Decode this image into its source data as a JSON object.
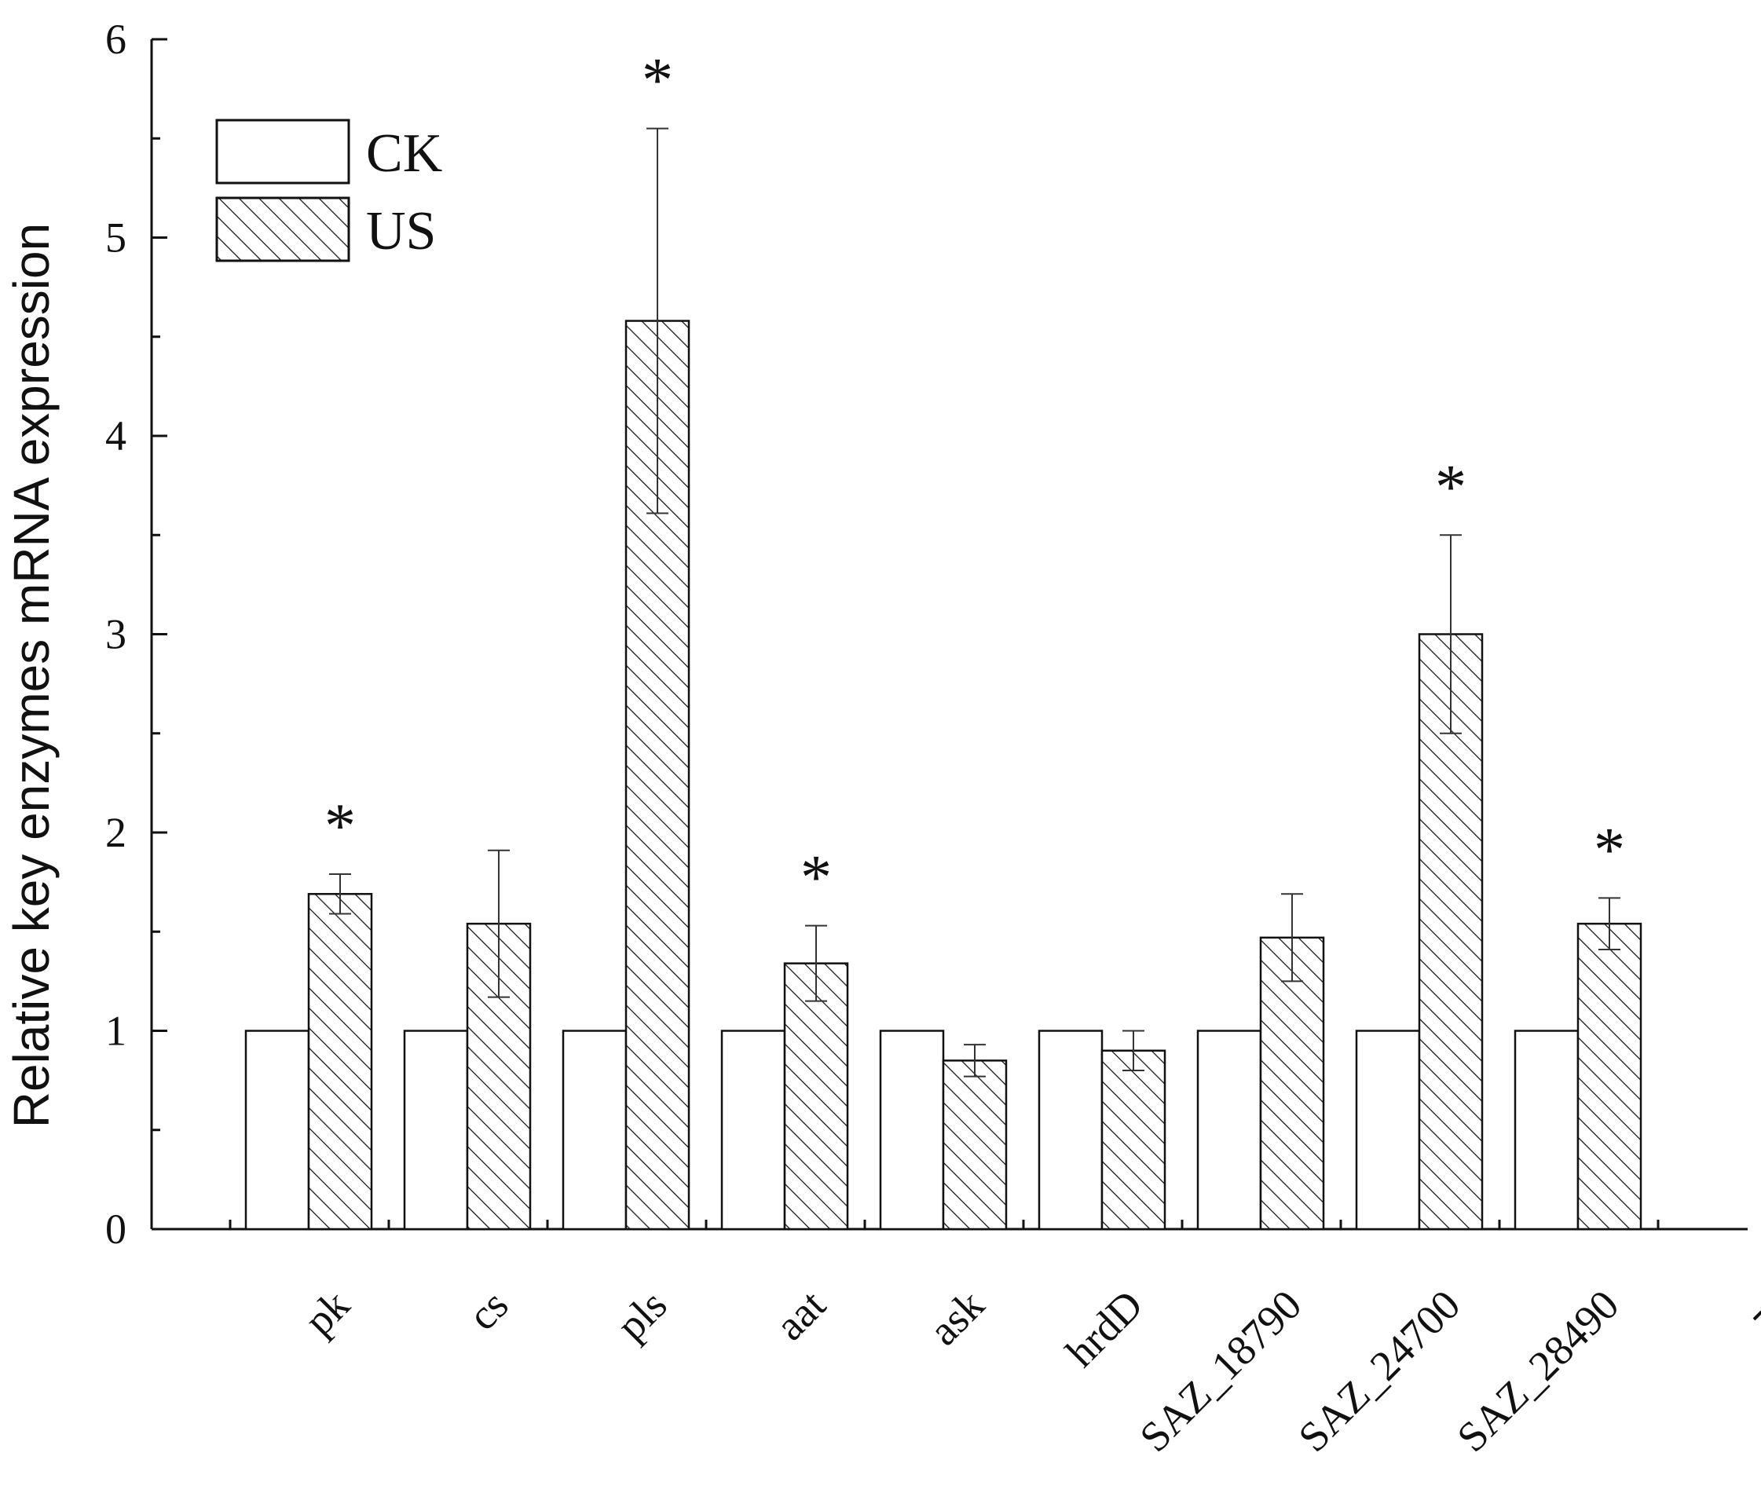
{
  "chart_data": {
    "type": "bar",
    "title": "",
    "xlabel": "",
    "ylabel": "Relative key enzymes mRNA expression",
    "ylim": [
      0,
      6
    ],
    "yticks": [
      "0",
      "1",
      "2",
      "3",
      "4",
      "5",
      "6"
    ],
    "grid": false,
    "legend_position": "top-left",
    "categories": [
      "pk",
      "cs",
      "pls",
      "aat",
      "ask",
      "hrdD",
      "SAZ_18790",
      "SAZ_24700",
      "SAZ_28490",
      "--"
    ],
    "series": [
      {
        "name": "CK",
        "fill": "white",
        "values": [
          1,
          1,
          1,
          1,
          1,
          1,
          1,
          1,
          1,
          null
        ],
        "errors": [
          0,
          0,
          0,
          0,
          0,
          0,
          0,
          0,
          0,
          null
        ]
      },
      {
        "name": "US",
        "fill": "hatched",
        "values": [
          1.69,
          1.54,
          4.58,
          1.34,
          0.85,
          0.9,
          1.47,
          3.0,
          1.54,
          null
        ],
        "errors": [
          0.1,
          0.37,
          0.97,
          0.19,
          0.08,
          0.1,
          0.22,
          0.5,
          0.13,
          null
        ]
      }
    ],
    "significance_marker": "*",
    "significant": [
      true,
      false,
      true,
      true,
      false,
      false,
      false,
      true,
      true,
      false
    ]
  }
}
